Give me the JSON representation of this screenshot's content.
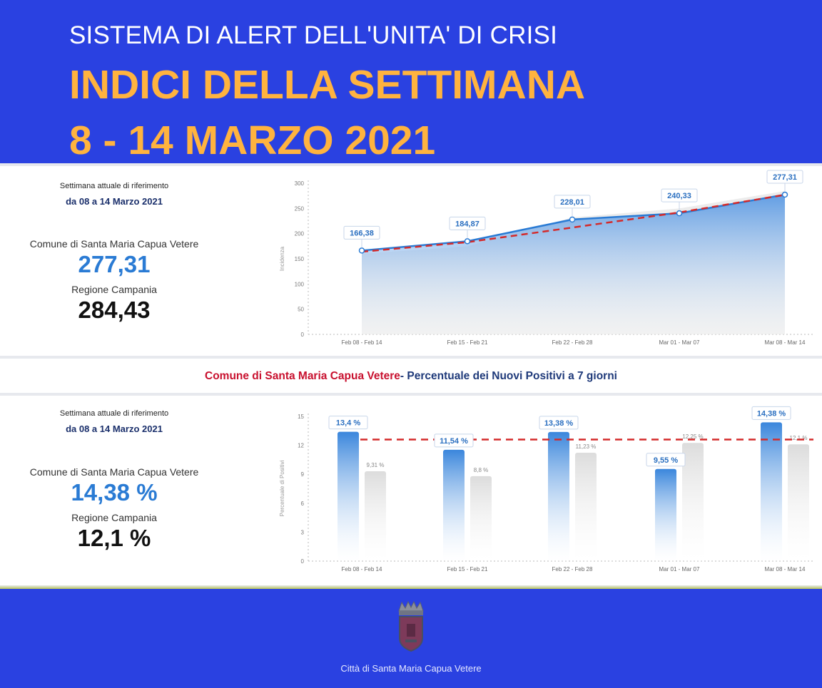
{
  "header": {
    "subtitle": "SISTEMA DI ALERT DELL'UNITA' DI CRISI",
    "title_line1": "INDICI DELLA SETTIMANA",
    "title_line2": "8 - 14 MARZO 2021"
  },
  "panel1": {
    "ref_label": "Settimana attuale di riferimento",
    "ref_date": "da 08 a 14 Marzo 2021",
    "comune_label": "Comune di Santa Maria Capua Vetere",
    "comune_value": "277,31",
    "region_label": "Regione Campania",
    "region_value": "284,43"
  },
  "band": {
    "part1": "Comune di Santa Maria Capua Vetere",
    "part2": " - Percentuale dei Nuovi Positivi a 7 giorni"
  },
  "panel2": {
    "ref_label": "Settimana attuale di riferimento",
    "ref_date": "da 08 a 14 Marzo 2021",
    "comune_label": "Comune di Santa Maria Capua Vetere",
    "comune_value": "14,38 %",
    "region_label": "Regione Campania",
    "region_value": "12,1 %"
  },
  "footer": {
    "city": "Città di Santa Maria Capua Vetere"
  },
  "colors": {
    "background": "#2a41e1",
    "title_accent": "#ffb33f",
    "comune_blue": "#2a7bd4",
    "trend_red": "#d42a2a",
    "band_red": "#c8102e",
    "band_navy": "#1f3a7a"
  },
  "chart_data": [
    {
      "type": "area",
      "categories": [
        "Feb 08 - Feb 14",
        "Feb 15 - Feb 21",
        "Feb 22 - Feb 28",
        "Mar 01 - Mar 07",
        "Mar 08 - Mar 14"
      ],
      "ylabel": "Incidenza",
      "ylim": [
        0,
        300
      ],
      "yticks": [
        "0",
        "50",
        "100",
        "150",
        "200",
        "250",
        "300"
      ],
      "grid": false,
      "series": [
        {
          "values": [
            166.38,
            184.87,
            228.01,
            240.33,
            277.31
          ],
          "labels": [
            "166,38",
            "184,87",
            "228,01",
            "240,33",
            "277,31"
          ]
        },
        {
          "values": [
            160,
            175,
            232,
            250,
            284.43
          ]
        }
      ],
      "trendline": {
        "values": [
          164,
          183,
          212,
          242,
          277
        ],
        "style": "dashed"
      }
    },
    {
      "type": "bar",
      "categories": [
        "Feb 08 - Feb 14",
        "Feb 15 - Feb 21",
        "Feb 22 - Feb 28",
        "Mar 01 - Mar 07",
        "Mar 08 - Mar 14"
      ],
      "ylabel": "Percentuale di Positivi",
      "ylim": [
        0,
        15
      ],
      "yticks": [
        "0",
        "3",
        "6",
        "9",
        "12",
        "15"
      ],
      "grid": false,
      "series": [
        {
          "values": [
            13.4,
            11.54,
            13.38,
            9.55,
            14.38
          ],
          "labels": [
            "13,4 %",
            "11,54 %",
            "13,38 %",
            "9,55 %",
            "14,38 %"
          ]
        },
        {
          "values": [
            9.31,
            8.8,
            11.23,
            12.25,
            12.1
          ],
          "labels": [
            "9,31 %",
            "8,8 %",
            "11,23 %",
            "12,25 %",
            "12,1 %"
          ]
        }
      ],
      "reference_line": {
        "value": 12.6,
        "style": "dashed"
      }
    }
  ]
}
